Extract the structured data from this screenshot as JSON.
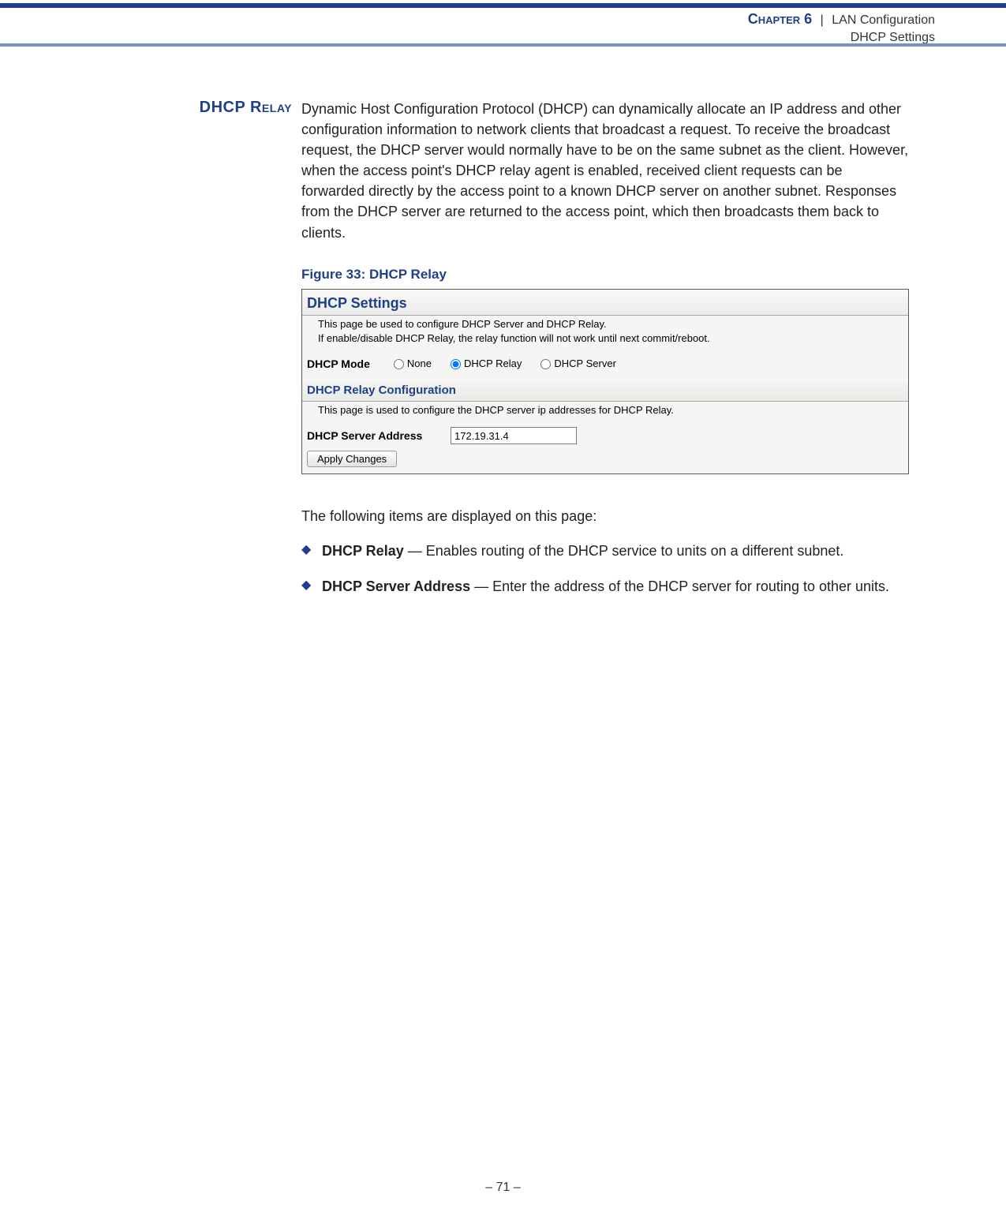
{
  "header": {
    "chapter_label": "Chapter 6",
    "pipe": "|",
    "chapter_title": "LAN Configuration",
    "sub": "DHCP Settings"
  },
  "section": {
    "side_heading": "DHCP Relay",
    "intro": "Dynamic Host Configuration Protocol (DHCP) can dynamically allocate an IP address and other configuration information to network clients that broadcast a request. To receive the broadcast request, the DHCP server would normally have to be on the same subnet as the client. However, when the access point's DHCP relay agent is enabled, received client requests can be forwarded directly by the access point to a known DHCP server on another subnet. Responses from the DHCP server are returned to the access point, which then broadcasts them back to clients.",
    "figure_caption": "Figure 33:  DHCP Relay"
  },
  "screenshot": {
    "title": "DHCP Settings",
    "desc_line1": "This page be used to configure DHCP Server and DHCP Relay.",
    "desc_line2": "If enable/disable DHCP Relay, the relay function will not work until next commit/reboot.",
    "mode_label": "DHCP Mode",
    "modes": {
      "none": "None",
      "relay": "DHCP Relay",
      "server": "DHCP Server",
      "selected": "relay"
    },
    "relay_section_head": "DHCP Relay Configuration",
    "relay_section_desc": "This page is used to configure the DHCP server ip addresses for DHCP Relay.",
    "server_addr_label": "DHCP Server Address",
    "server_addr_value": "172.19.31.4",
    "apply_button": "Apply Changes"
  },
  "after_figure": {
    "lead": "The following items are displayed on this page:",
    "bullets": [
      {
        "term": "DHCP Relay",
        "text": " — Enables routing of the DHCP service to units on a different subnet."
      },
      {
        "term": "DHCP Server Address",
        "text": " — Enter the address of the DHCP server for routing to other units."
      }
    ]
  },
  "footer": "–  71  –",
  "colors": {
    "brand_blue": "#1f3f8b",
    "mid_blue": "#7a91c8"
  }
}
